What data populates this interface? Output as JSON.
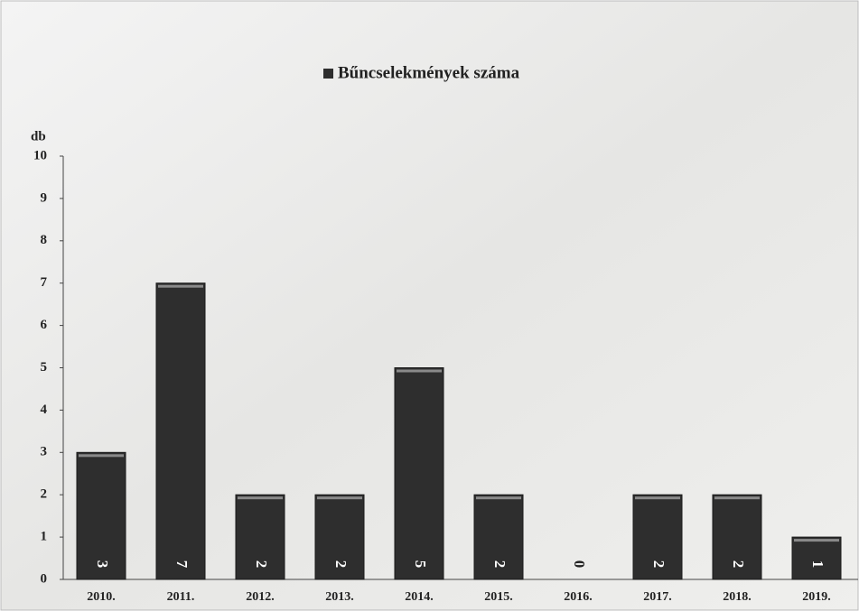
{
  "chart_data": {
    "type": "bar",
    "categories": [
      "2010.",
      "2011.",
      "2012.",
      "2013.",
      "2014.",
      "2015.",
      "2016.",
      "2017.",
      "2018.",
      "2019."
    ],
    "series": [
      {
        "name": "Bűncselekmények száma",
        "color": "#2e2e2e",
        "values": [
          3,
          7,
          2,
          2,
          5,
          2,
          0,
          2,
          2,
          1
        ]
      }
    ],
    "y_label": "db",
    "ylim": [
      0,
      10
    ],
    "yticks": [
      0,
      1,
      2,
      3,
      4,
      5,
      6,
      7,
      8,
      9,
      10
    ]
  }
}
